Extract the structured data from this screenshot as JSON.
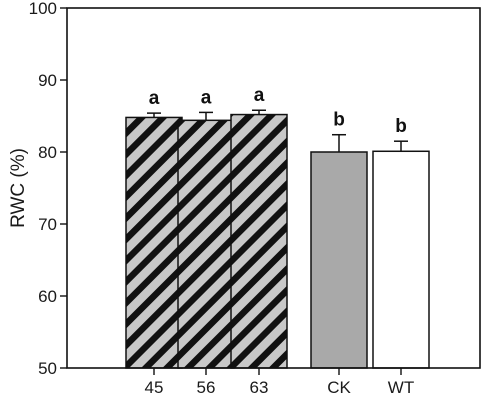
{
  "chart_data": {
    "type": "bar",
    "title": "",
    "xlabel": "",
    "ylabel": "RWC (%)",
    "ylim": [
      50,
      100
    ],
    "yticks": [
      50,
      60,
      70,
      80,
      90,
      100
    ],
    "grid": false,
    "categories": [
      "45",
      "56",
      "63",
      "CK",
      "WT"
    ],
    "values": [
      84.8,
      84.4,
      85.2,
      80.0,
      80.1
    ],
    "errors": [
      0.6,
      1.1,
      0.6,
      2.4,
      1.4
    ],
    "significance": [
      "a",
      "a",
      "a",
      "b",
      "b"
    ],
    "fills": [
      "hatched",
      "hatched",
      "hatched",
      "gray",
      "white"
    ],
    "colors": {
      "hatch_background": "#c8c8c8",
      "hatch_stripe": "#111111",
      "gray_fill": "#a9a9a9",
      "white_fill": "#ffffff",
      "stroke": "#111111"
    }
  }
}
